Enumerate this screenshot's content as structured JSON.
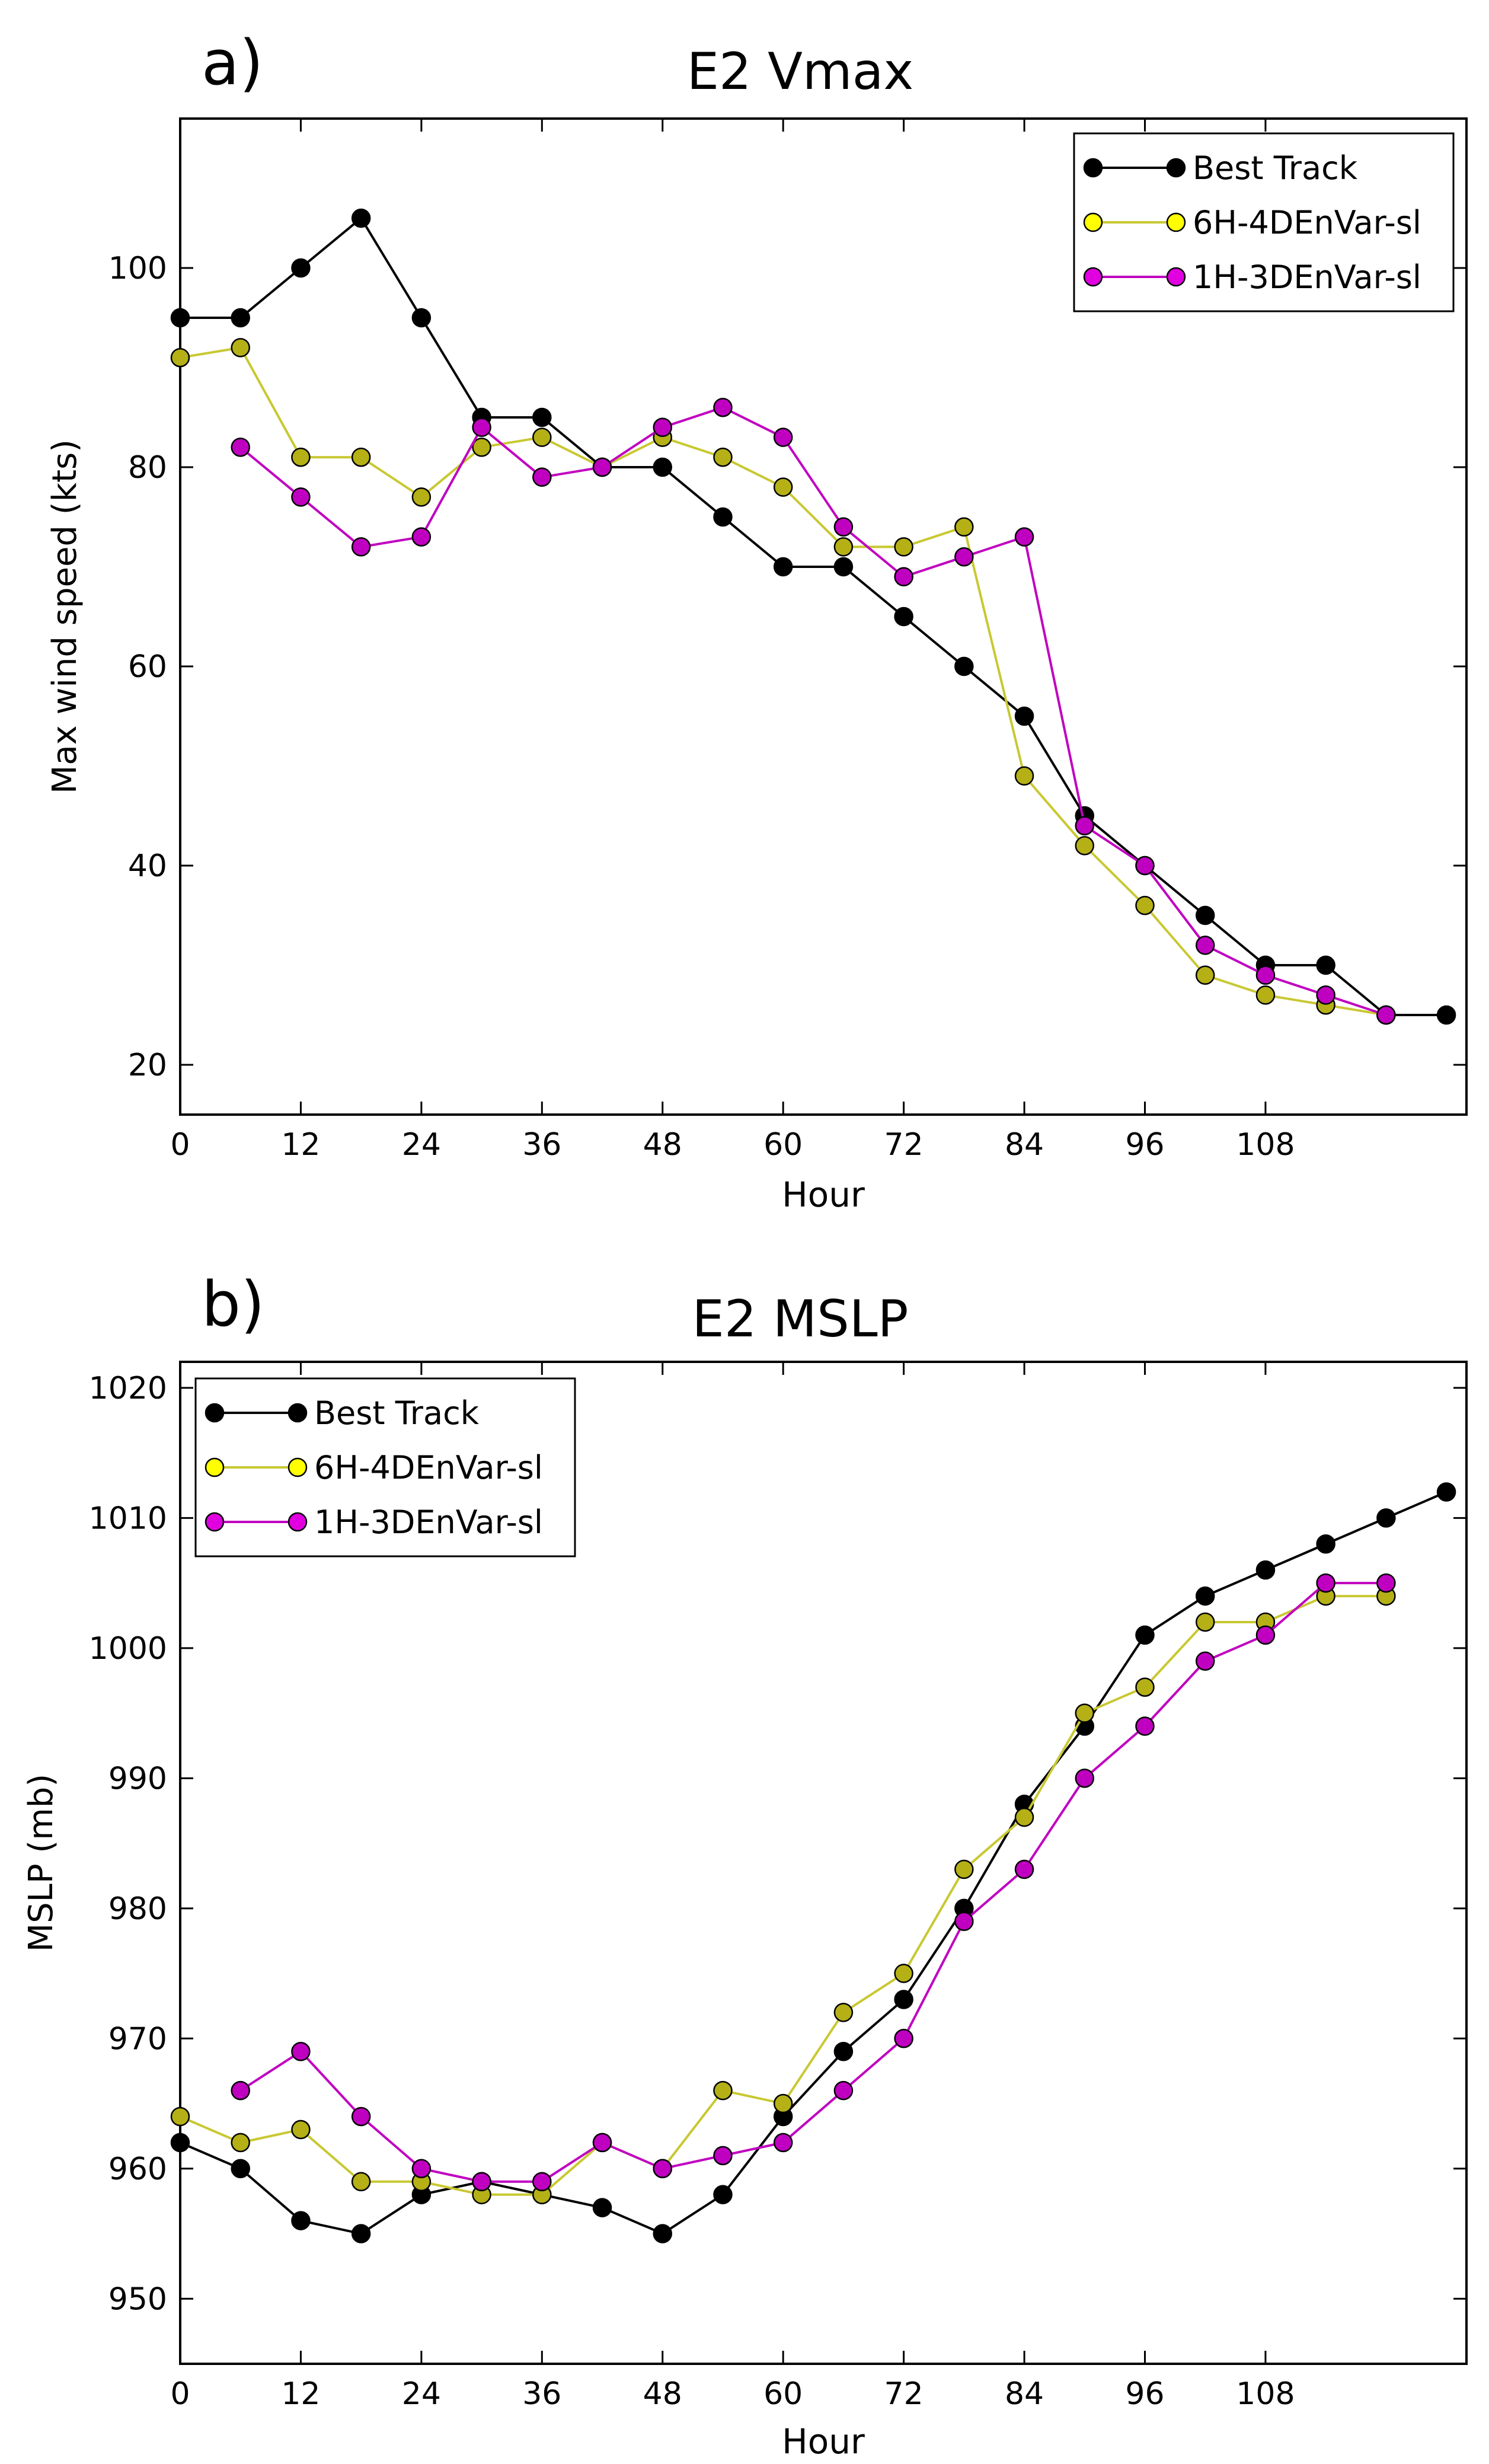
{
  "chart_data": [
    {
      "type": "line",
      "panel_label": "a)",
      "title": "E2 Vmax",
      "xlabel": "Hour",
      "ylabel": "Max wind speed (kts)",
      "xlim": [
        0,
        128
      ],
      "ylim": [
        15,
        115
      ],
      "xticks": [
        0,
        12,
        24,
        36,
        48,
        60,
        72,
        84,
        96,
        108
      ],
      "yticks": [
        20,
        40,
        60,
        80,
        100
      ],
      "xtick_labels": [
        "0",
        "12",
        "24",
        "36",
        "48",
        "60",
        "72",
        "84",
        "96",
        "108"
      ],
      "ytick_labels": [
        "20",
        "40",
        "60",
        "80",
        "100"
      ],
      "legend_position": "top-right",
      "series": [
        {
          "name": "Best Track",
          "line_color": "#000000",
          "marker_color": "#000000",
          "legend_marker_color": "#000000",
          "x": [
            0,
            6,
            12,
            18,
            24,
            30,
            36,
            42,
            48,
            54,
            60,
            66,
            72,
            78,
            84,
            90,
            96,
            102,
            108,
            114,
            120,
            126
          ],
          "values": [
            95,
            95,
            100,
            105,
            95,
            85,
            85,
            80,
            80,
            75,
            70,
            70,
            65,
            60,
            55,
            45,
            40,
            35,
            30,
            30,
            25,
            25
          ]
        },
        {
          "name": "6H-4DEnVar-sl",
          "line_color": "#c8c832",
          "marker_color": "#b5b016",
          "legend_marker_color": "#ffff00",
          "x": [
            0,
            6,
            12,
            18,
            24,
            30,
            36,
            42,
            48,
            54,
            60,
            66,
            72,
            78,
            84,
            90,
            96,
            102,
            108,
            114,
            120
          ],
          "values": [
            91,
            92,
            81,
            81,
            77,
            82,
            83,
            80,
            83,
            81,
            78,
            72,
            72,
            74,
            49,
            42,
            36,
            29,
            27,
            26,
            25
          ]
        },
        {
          "name": "1H-3DEnVar-sl",
          "line_color": "#c000c0",
          "marker_color": "#c000c0",
          "legend_marker_color": "#e000e0",
          "x": [
            6,
            12,
            18,
            24,
            30,
            36,
            42,
            48,
            54,
            60,
            66,
            72,
            78,
            84,
            90,
            96,
            102,
            108,
            114,
            120
          ],
          "values": [
            82,
            77,
            72,
            73,
            84,
            79,
            80,
            84,
            86,
            83,
            74,
            69,
            71,
            73,
            44,
            40,
            32,
            29,
            27,
            25
          ]
        }
      ]
    },
    {
      "type": "line",
      "panel_label": "b)",
      "title": "E2 MSLP",
      "xlabel": "Hour",
      "ylabel": "MSLP (mb)",
      "xlim": [
        0,
        128
      ],
      "ylim": [
        945,
        1022
      ],
      "xticks": [
        0,
        12,
        24,
        36,
        48,
        60,
        72,
        84,
        96,
        108
      ],
      "yticks": [
        950,
        960,
        970,
        980,
        990,
        1000,
        1010,
        1020
      ],
      "xtick_labels": [
        "0",
        "12",
        "24",
        "36",
        "48",
        "60",
        "72",
        "84",
        "96",
        "108"
      ],
      "ytick_labels": [
        "950",
        "960",
        "970",
        "980",
        "990",
        "1000",
        "1010",
        "1020"
      ],
      "legend_position": "top-left",
      "series": [
        {
          "name": "Best Track",
          "line_color": "#000000",
          "marker_color": "#000000",
          "legend_marker_color": "#000000",
          "x": [
            0,
            6,
            12,
            18,
            24,
            30,
            36,
            42,
            48,
            54,
            60,
            66,
            72,
            78,
            84,
            90,
            96,
            102,
            108,
            114,
            120,
            126
          ],
          "values": [
            962,
            960,
            956,
            955,
            958,
            959,
            958,
            957,
            955,
            958,
            964,
            969,
            973,
            980,
            988,
            994,
            1001,
            1004,
            1006,
            1008,
            1010,
            1012
          ]
        },
        {
          "name": "6H-4DEnVar-sl",
          "line_color": "#c8c832",
          "marker_color": "#b5b016",
          "legend_marker_color": "#ffff00",
          "x": [
            0,
            6,
            12,
            18,
            24,
            30,
            36,
            42,
            48,
            54,
            60,
            66,
            72,
            78,
            84,
            90,
            96,
            102,
            108,
            114,
            120
          ],
          "values": [
            964,
            962,
            963,
            959,
            959,
            958,
            958,
            962,
            960,
            966,
            965,
            972,
            975,
            983,
            987,
            995,
            997,
            1002,
            1002,
            1004,
            1004
          ]
        },
        {
          "name": "1H-3DEnVar-sl",
          "line_color": "#c000c0",
          "marker_color": "#c000c0",
          "legend_marker_color": "#e000e0",
          "x": [
            6,
            12,
            18,
            24,
            30,
            36,
            42,
            48,
            54,
            60,
            66,
            72,
            78,
            84,
            90,
            96,
            102,
            108,
            114,
            120
          ],
          "values": [
            966,
            969,
            964,
            960,
            959,
            959,
            962,
            960,
            961,
            962,
            966,
            970,
            979,
            983,
            990,
            994,
            999,
            1001,
            1005,
            1005
          ]
        }
      ]
    }
  ]
}
